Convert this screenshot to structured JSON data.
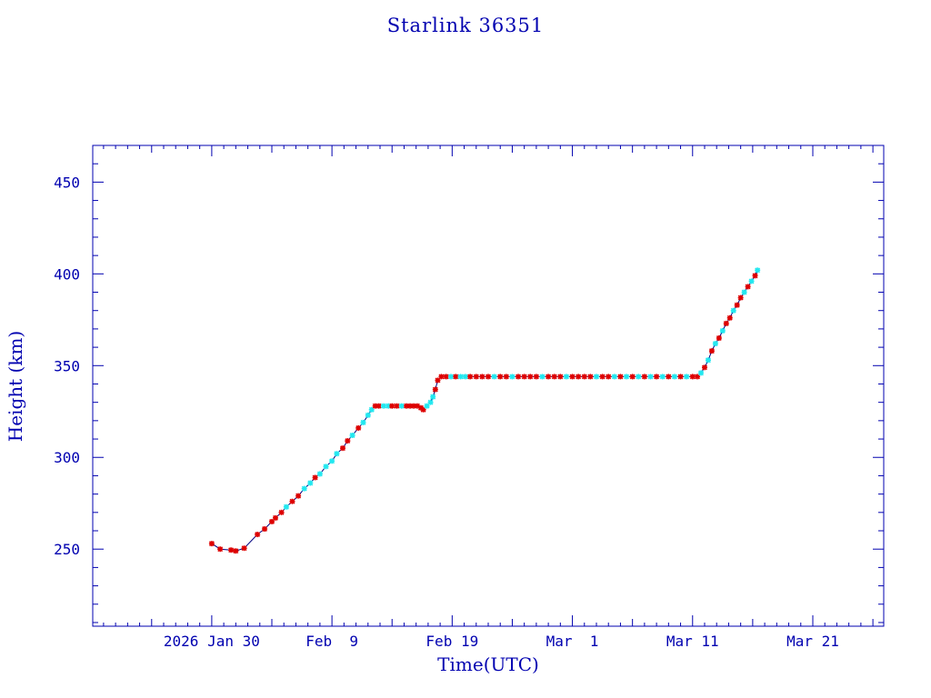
{
  "chart_data": {
    "type": "scatter",
    "title": "Starlink 36351",
    "xlabel": "Time(UTC)",
    "ylabel": "Height (km)",
    "x_unit": "days since 2026 Jan 30",
    "xlim": [
      -9.9,
      55.9
    ],
    "ylim": [
      208,
      470
    ],
    "x_ticks": [
      {
        "value": 0,
        "label": "2026 Jan 30"
      },
      {
        "value": 10,
        "label": "Feb  9"
      },
      {
        "value": 20,
        "label": "Feb 19"
      },
      {
        "value": 30,
        "label": "Mar  1"
      },
      {
        "value": 40,
        "label": "Mar 11"
      },
      {
        "value": 50,
        "label": "Mar 21"
      }
    ],
    "y_ticks": [
      {
        "value": 250,
        "label": "250"
      },
      {
        "value": 300,
        "label": "300"
      },
      {
        "value": 350,
        "label": "350"
      },
      {
        "value": 400,
        "label": "400"
      },
      {
        "value": 450,
        "label": "450"
      }
    ],
    "colors": {
      "axis": "#0000b0",
      "line": "#000080",
      "r": "#dd0000",
      "c": "#22e8f0"
    },
    "series_legend": {
      "r": "red markers",
      "c": "cyan markers"
    },
    "points": [
      [
        0,
        253,
        "r"
      ],
      [
        0.7,
        250,
        "r"
      ],
      [
        1.6,
        249.5,
        "r"
      ],
      [
        2.0,
        249,
        "r"
      ],
      [
        2.7,
        250.5,
        "r"
      ],
      [
        3.8,
        258,
        "r"
      ],
      [
        4.4,
        261,
        "r"
      ],
      [
        5.0,
        265,
        "r"
      ],
      [
        5.3,
        267,
        "r"
      ],
      [
        5.8,
        270,
        "r"
      ],
      [
        6.2,
        273,
        "c"
      ],
      [
        6.7,
        276,
        "r"
      ],
      [
        7.2,
        279,
        "r"
      ],
      [
        7.7,
        283,
        "c"
      ],
      [
        8.2,
        286,
        "c"
      ],
      [
        8.6,
        289,
        "r"
      ],
      [
        9.0,
        291,
        "c"
      ],
      [
        9.5,
        295,
        "c"
      ],
      [
        10.0,
        298,
        "c"
      ],
      [
        10.4,
        302,
        "c"
      ],
      [
        10.9,
        305,
        "r"
      ],
      [
        11.3,
        309,
        "r"
      ],
      [
        11.7,
        312,
        "c"
      ],
      [
        12.2,
        316,
        "r"
      ],
      [
        12.6,
        319,
        "c"
      ],
      [
        13.0,
        323,
        "c"
      ],
      [
        13.3,
        326,
        "c"
      ],
      [
        13.6,
        328,
        "r"
      ],
      [
        13.9,
        328,
        "r"
      ],
      [
        14.3,
        328,
        "c"
      ],
      [
        14.7,
        328,
        "c"
      ],
      [
        15.0,
        328,
        "r"
      ],
      [
        15.4,
        328,
        "r"
      ],
      [
        15.8,
        328,
        "c"
      ],
      [
        16.2,
        328,
        "r"
      ],
      [
        16.5,
        328,
        "r"
      ],
      [
        16.8,
        328,
        "r"
      ],
      [
        17.1,
        328,
        "r"
      ],
      [
        17.4,
        327,
        "r"
      ],
      [
        17.6,
        326,
        "r"
      ],
      [
        17.9,
        328,
        "c"
      ],
      [
        18.2,
        330,
        "c"
      ],
      [
        18.4,
        333,
        "c"
      ],
      [
        18.6,
        337,
        "r"
      ],
      [
        18.8,
        342,
        "r"
      ],
      [
        19.1,
        344,
        "r"
      ],
      [
        19.5,
        344,
        "r"
      ],
      [
        19.9,
        344,
        "c"
      ],
      [
        20.3,
        344,
        "r"
      ],
      [
        20.7,
        344,
        "c"
      ],
      [
        21.1,
        344,
        "c"
      ],
      [
        21.5,
        344,
        "r"
      ],
      [
        22.0,
        344,
        "r"
      ],
      [
        22.5,
        344,
        "r"
      ],
      [
        23.0,
        344,
        "r"
      ],
      [
        23.5,
        344,
        "c"
      ],
      [
        24.0,
        344,
        "r"
      ],
      [
        24.5,
        344,
        "r"
      ],
      [
        25.0,
        344,
        "c"
      ],
      [
        25.5,
        344,
        "r"
      ],
      [
        26.0,
        344,
        "r"
      ],
      [
        26.5,
        344,
        "r"
      ],
      [
        27.0,
        344,
        "r"
      ],
      [
        27.5,
        344,
        "c"
      ],
      [
        28.0,
        344,
        "r"
      ],
      [
        28.5,
        344,
        "r"
      ],
      [
        29.0,
        344,
        "r"
      ],
      [
        29.5,
        344,
        "c"
      ],
      [
        30.0,
        344,
        "r"
      ],
      [
        30.5,
        344,
        "r"
      ],
      [
        31.0,
        344,
        "r"
      ],
      [
        31.5,
        344,
        "r"
      ],
      [
        32.0,
        344,
        "c"
      ],
      [
        32.5,
        344,
        "r"
      ],
      [
        33.0,
        344,
        "r"
      ],
      [
        33.5,
        344,
        "c"
      ],
      [
        34.0,
        344,
        "r"
      ],
      [
        34.5,
        344,
        "c"
      ],
      [
        35.0,
        344,
        "r"
      ],
      [
        35.5,
        344,
        "c"
      ],
      [
        36.0,
        344,
        "r"
      ],
      [
        36.5,
        344,
        "c"
      ],
      [
        37.0,
        344,
        "r"
      ],
      [
        37.5,
        344,
        "c"
      ],
      [
        38.0,
        344,
        "r"
      ],
      [
        38.5,
        344,
        "c"
      ],
      [
        39.0,
        344,
        "r"
      ],
      [
        39.5,
        344,
        "c"
      ],
      [
        40.0,
        344,
        "r"
      ],
      [
        40.4,
        344,
        "r"
      ],
      [
        40.7,
        346,
        "c"
      ],
      [
        41.0,
        349,
        "r"
      ],
      [
        41.3,
        353,
        "c"
      ],
      [
        41.6,
        358,
        "r"
      ],
      [
        41.9,
        362,
        "c"
      ],
      [
        42.2,
        365,
        "r"
      ],
      [
        42.5,
        369,
        "c"
      ],
      [
        42.8,
        373,
        "r"
      ],
      [
        43.1,
        376,
        "r"
      ],
      [
        43.4,
        380,
        "c"
      ],
      [
        43.7,
        383,
        "r"
      ],
      [
        44.0,
        387,
        "r"
      ],
      [
        44.3,
        390,
        "c"
      ],
      [
        44.6,
        393,
        "r"
      ],
      [
        44.9,
        396,
        "c"
      ],
      [
        45.2,
        399,
        "r"
      ],
      [
        45.4,
        402,
        "c"
      ]
    ]
  }
}
